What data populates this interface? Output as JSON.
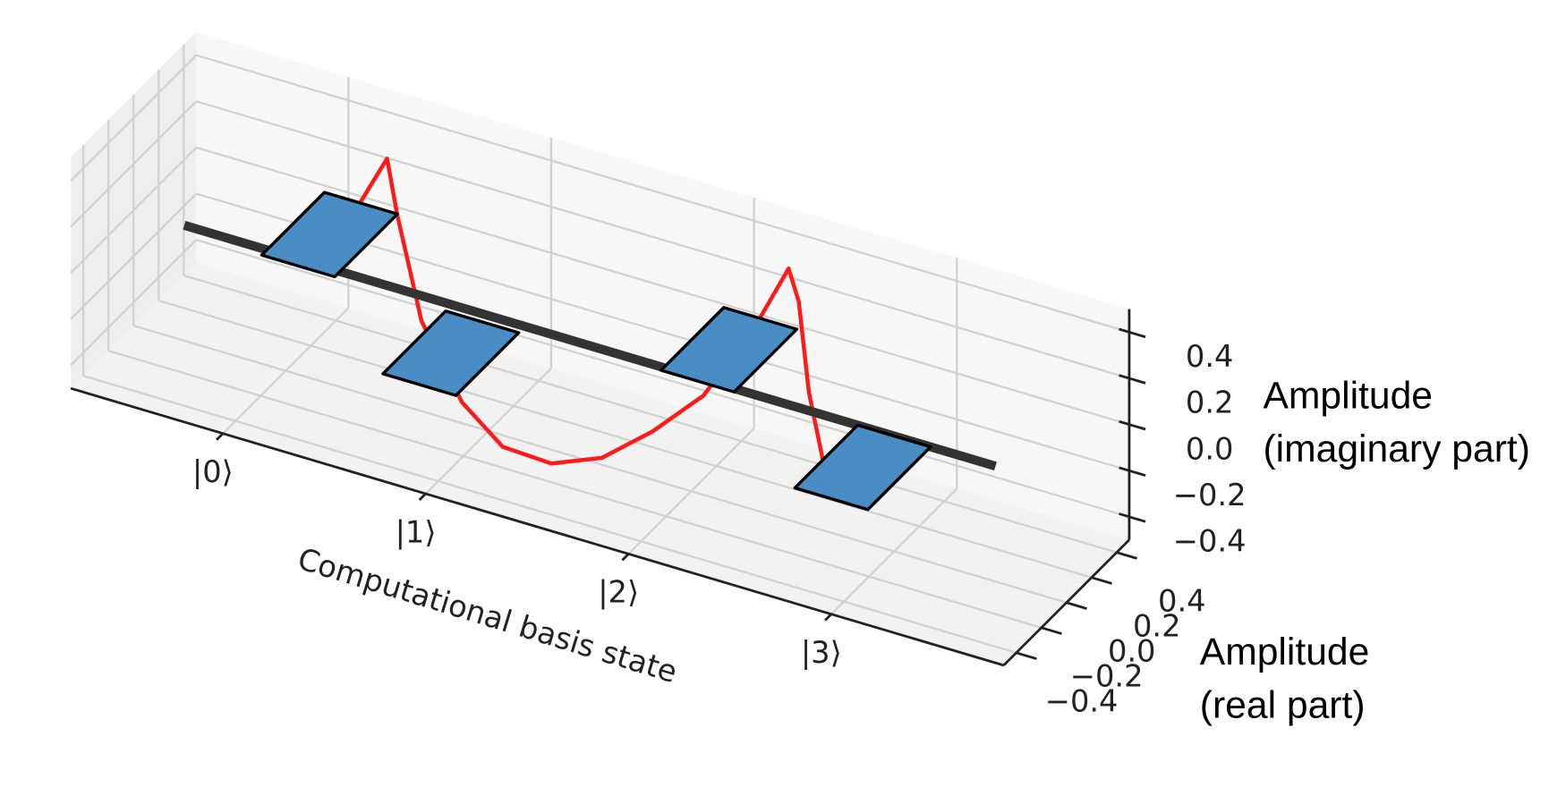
{
  "chart_data": {
    "type": "bar3d",
    "categories": [
      "|0⟩",
      "|1⟩",
      "|2⟩",
      "|3⟩"
    ],
    "real": [
      0.35,
      -0.3,
      0.3,
      -0.25
    ],
    "imag": [
      -0.1,
      0,
      -0.05,
      0
    ],
    "tile_color": "#4a8cc4",
    "line_color": "#333333",
    "curve": {
      "color": "#ff1a1a",
      "x": [
        0.3,
        0.5,
        0.55,
        0.67,
        0.87,
        1.07,
        1.31,
        1.56,
        1.81,
        2.06,
        2.3,
        2.48,
        2.53,
        2.58,
        2.65
      ],
      "values": [
        0.21,
        0.55,
        0.32,
        -0.11,
        -0.41,
        -0.55,
        -0.56,
        -0.47,
        -0.29,
        -0.07,
        0.27,
        0.59,
        0.46,
        0.08,
        -0.2
      ]
    },
    "xlabel": "Computational basis state",
    "ylabel": [
      "Amplitude",
      "(real part)"
    ],
    "zlabel": [
      "Amplitude",
      "(imaginary part)"
    ],
    "xlim": [
      -0.75,
      3.85
    ],
    "ylim": [
      -0.5,
      0.5
    ],
    "zlim": [
      -0.5,
      0.5
    ],
    "yticks": [
      {
        "value": -0.4,
        "label": "−0.4"
      },
      {
        "value": -0.2,
        "label": "−0.2"
      },
      {
        "value": 0,
        "label": "0.0"
      },
      0.2,
      0.4
    ],
    "zticks": [
      {
        "value": -0.4,
        "label": "−0.4"
      },
      {
        "value": -0.2,
        "label": "−0.2"
      },
      {
        "value": 0,
        "label": "0.0"
      },
      0.2,
      0.4
    ],
    "grid": true
  }
}
